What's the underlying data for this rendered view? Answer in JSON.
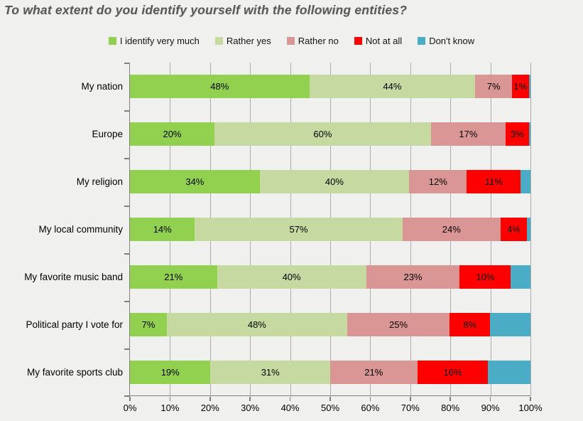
{
  "title": "To what extent do you identify yourself with the following entities?",
  "chart_data": {
    "type": "bar",
    "orientation": "horizontal",
    "stacked": true,
    "title": "To what extent do you identify yourself with the following entities?",
    "xlabel": "",
    "ylabel": "",
    "xlim": [
      0,
      100
    ],
    "x_ticks": [
      "0%",
      "10%",
      "20%",
      "30%",
      "40%",
      "50%",
      "60%",
      "70%",
      "80%",
      "90%",
      "100%"
    ],
    "grid": true,
    "legend_position": "top",
    "data_label_suffix": "%",
    "categories": [
      "My nation",
      "Europe",
      "My religion",
      "My local community",
      "My favorite music band",
      "Political party I vote for",
      "My favorite sports club"
    ],
    "series": [
      {
        "key": "identify-very-much",
        "name": "I identify very much",
        "color": "#92D050",
        "show_labels": true,
        "values": [
          48,
          20,
          34,
          14,
          21,
          7,
          19
        ]
      },
      {
        "key": "rather-yes",
        "name": "Rather yes",
        "color": "#C5D9A1",
        "show_labels": true,
        "values": [
          44,
          60,
          40,
          57,
          40,
          48,
          31
        ]
      },
      {
        "key": "rather-no",
        "name": "Rather no",
        "color": "#D99694",
        "show_labels": true,
        "values": [
          7,
          17,
          12,
          24,
          23,
          25,
          21
        ]
      },
      {
        "key": "not-at-all",
        "name": "Not at all",
        "color": "#FF0000",
        "show_labels": true,
        "values": [
          1,
          3,
          11,
          4,
          10,
          8,
          16
        ]
      },
      {
        "key": "dont-know",
        "name": "Don't know",
        "color": "#4BACC6",
        "show_labels": false,
        "values": [
          0.5,
          0.5,
          3,
          1,
          6,
          12,
          13
        ]
      }
    ]
  }
}
